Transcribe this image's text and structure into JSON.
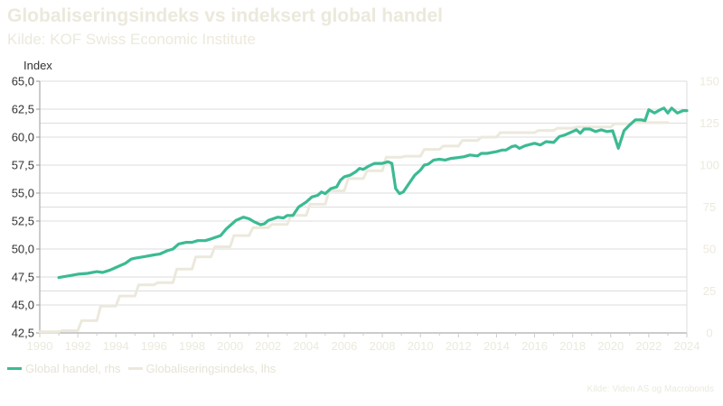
{
  "header": {
    "title": "Globaliseringsindeks vs indeksert global handel",
    "subtitle": "Kilde: KOF Swiss Economic Institute"
  },
  "legend": {
    "items": [
      {
        "label": "Global handel, rhs",
        "color": "#3cba93"
      },
      {
        "label": "Globaliseringsindeks, lhs",
        "color": "#ece9dc"
      }
    ]
  },
  "footer": {
    "source": "Kilde: Viden AS og Macrobonds"
  },
  "chart_data": {
    "type": "line",
    "ylabel": "Index",
    "xlim": [
      1990,
      2024
    ],
    "x_ticks": [
      1990,
      1992,
      1994,
      1996,
      1998,
      2000,
      2002,
      2004,
      2006,
      2008,
      2010,
      2012,
      2014,
      2016,
      2018,
      2020,
      2022,
      2024
    ],
    "y_left": {
      "range": [
        42.5,
        65.0
      ],
      "ticks": [
        "42,5",
        "45,0",
        "47,5",
        "50,0",
        "52,5",
        "55,0",
        "57,5",
        "60,0",
        "62,5",
        "65,0"
      ]
    },
    "y_right": {
      "range": [
        0,
        150
      ],
      "ticks": [
        "0",
        "25",
        "50",
        "75",
        "100",
        "125",
        "150"
      ]
    },
    "grid": true,
    "colors": {
      "trade": "#3cba93",
      "globalization": "#ece9dc",
      "axis_text": "#ece9dc",
      "left_text": "#333333",
      "grid": "#dddddd"
    },
    "series": [
      {
        "name": "Globaliseringsindeks, lhs",
        "axis": "left",
        "color": "#ece9dc",
        "points": [
          [
            1990,
            42.6
          ],
          [
            1991,
            42.6
          ],
          [
            1991.2,
            42.7
          ],
          [
            1992,
            42.7
          ],
          [
            1992.2,
            43.6
          ],
          [
            1993,
            43.6
          ],
          [
            1993.2,
            44.9
          ],
          [
            1994,
            44.9
          ],
          [
            1994.2,
            45.8
          ],
          [
            1995,
            45.8
          ],
          [
            1995.2,
            46.8
          ],
          [
            1996,
            46.8
          ],
          [
            1996.2,
            47.0
          ],
          [
            1997,
            47.0
          ],
          [
            1997.2,
            48.2
          ],
          [
            1998,
            48.2
          ],
          [
            1998.2,
            49.3
          ],
          [
            1999,
            49.3
          ],
          [
            1999.2,
            50.2
          ],
          [
            2000,
            50.2
          ],
          [
            2000.2,
            51.2
          ],
          [
            2001,
            51.2
          ],
          [
            2001.2,
            51.9
          ],
          [
            2002,
            51.9
          ],
          [
            2002.2,
            52.2
          ],
          [
            2003,
            52.2
          ],
          [
            2003.2,
            53.0
          ],
          [
            2004,
            53.0
          ],
          [
            2004.2,
            54.0
          ],
          [
            2005,
            54.0
          ],
          [
            2005.2,
            55.2
          ],
          [
            2006,
            55.2
          ],
          [
            2006.2,
            56.3
          ],
          [
            2007,
            56.3
          ],
          [
            2007.2,
            57.0
          ],
          [
            2008,
            57.0
          ],
          [
            2008.2,
            58.2
          ],
          [
            2009,
            58.2
          ],
          [
            2009.2,
            58.3
          ],
          [
            2010,
            58.3
          ],
          [
            2010.2,
            58.9
          ],
          [
            2011,
            58.9
          ],
          [
            2011.2,
            59.2
          ],
          [
            2012,
            59.2
          ],
          [
            2012.2,
            59.7
          ],
          [
            2013,
            59.7
          ],
          [
            2013.2,
            60.0
          ],
          [
            2014,
            60.0
          ],
          [
            2014.2,
            60.4
          ],
          [
            2015,
            60.4
          ],
          [
            2015.2,
            60.4
          ],
          [
            2016,
            60.4
          ],
          [
            2016.2,
            60.6
          ],
          [
            2017,
            60.6
          ],
          [
            2017.2,
            60.8
          ],
          [
            2018,
            60.8
          ],
          [
            2018.2,
            60.9
          ],
          [
            2019,
            60.9
          ],
          [
            2019.2,
            60.9
          ],
          [
            2020,
            60.9
          ],
          [
            2020.2,
            61.2
          ],
          [
            2021,
            61.2
          ],
          [
            2021.2,
            61.3
          ],
          [
            2023,
            61.3
          ]
        ]
      },
      {
        "name": "Global handel, rhs",
        "axis": "right",
        "color": "#3cba93",
        "points": [
          [
            1991,
            33
          ],
          [
            1991.5,
            34
          ],
          [
            1992,
            35
          ],
          [
            1992.5,
            35.5
          ],
          [
            1993,
            36.5
          ],
          [
            1993.3,
            36
          ],
          [
            1993.7,
            37.5
          ],
          [
            1994,
            39
          ],
          [
            1994.5,
            41.5
          ],
          [
            1994.8,
            44
          ],
          [
            1995,
            44.5
          ],
          [
            1995.5,
            45.5
          ],
          [
            1996,
            46.5
          ],
          [
            1996.3,
            47
          ],
          [
            1996.7,
            49
          ],
          [
            1997,
            50
          ],
          [
            1997.3,
            53
          ],
          [
            1997.7,
            54
          ],
          [
            1998,
            54
          ],
          [
            1998.3,
            55
          ],
          [
            1998.7,
            55
          ],
          [
            1999,
            56
          ],
          [
            1999.5,
            58
          ],
          [
            1999.8,
            62
          ],
          [
            2000,
            64
          ],
          [
            2000.3,
            67
          ],
          [
            2000.7,
            69
          ],
          [
            2001,
            68
          ],
          [
            2001.3,
            66
          ],
          [
            2001.6,
            64.5
          ],
          [
            2001.8,
            65
          ],
          [
            2002,
            67
          ],
          [
            2002.5,
            69
          ],
          [
            2002.8,
            68.5
          ],
          [
            2003,
            70
          ],
          [
            2003.3,
            70
          ],
          [
            2003.6,
            75
          ],
          [
            2004,
            78
          ],
          [
            2004.3,
            81
          ],
          [
            2004.6,
            82
          ],
          [
            2004.8,
            84
          ],
          [
            2005,
            83
          ],
          [
            2005.3,
            86
          ],
          [
            2005.6,
            87
          ],
          [
            2005.8,
            91
          ],
          [
            2006,
            93
          ],
          [
            2006.3,
            94
          ],
          [
            2006.6,
            96
          ],
          [
            2006.8,
            98
          ],
          [
            2007,
            97.5
          ],
          [
            2007.3,
            99.5
          ],
          [
            2007.6,
            101
          ],
          [
            2008,
            101
          ],
          [
            2008.3,
            102
          ],
          [
            2008.5,
            101
          ],
          [
            2008.7,
            86
          ],
          [
            2008.9,
            83
          ],
          [
            2009.1,
            84
          ],
          [
            2009.4,
            89
          ],
          [
            2009.7,
            94
          ],
          [
            2010,
            97
          ],
          [
            2010.2,
            100
          ],
          [
            2010.4,
            100.5
          ],
          [
            2010.7,
            103
          ],
          [
            2011,
            103.5
          ],
          [
            2011.3,
            103
          ],
          [
            2011.6,
            104
          ],
          [
            2012,
            104.5
          ],
          [
            2012.3,
            105
          ],
          [
            2012.6,
            106
          ],
          [
            2013,
            105.5
          ],
          [
            2013.2,
            107
          ],
          [
            2013.5,
            107
          ],
          [
            2014,
            108
          ],
          [
            2014.3,
            109
          ],
          [
            2014.5,
            109
          ],
          [
            2014.8,
            111
          ],
          [
            2015,
            111.5
          ],
          [
            2015.2,
            110
          ],
          [
            2015.5,
            111.5
          ],
          [
            2016,
            113
          ],
          [
            2016.3,
            112
          ],
          [
            2016.6,
            114
          ],
          [
            2017,
            113.5
          ],
          [
            2017.3,
            117
          ],
          [
            2017.6,
            118
          ],
          [
            2018,
            120
          ],
          [
            2018.2,
            121
          ],
          [
            2018.4,
            119
          ],
          [
            2018.6,
            121.5
          ],
          [
            2018.9,
            121.5
          ],
          [
            2019.2,
            120
          ],
          [
            2019.5,
            121
          ],
          [
            2019.8,
            120
          ],
          [
            2020.1,
            120.5
          ],
          [
            2020.4,
            110
          ],
          [
            2020.7,
            120.5
          ],
          [
            2021,
            124
          ],
          [
            2021.3,
            127
          ],
          [
            2021.6,
            127
          ],
          [
            2021.8,
            126.5
          ],
          [
            2022,
            133
          ],
          [
            2022.3,
            131
          ],
          [
            2022.6,
            133
          ],
          [
            2022.8,
            134
          ],
          [
            2023.0,
            131
          ],
          [
            2023.2,
            134
          ],
          [
            2023.5,
            131
          ],
          [
            2023.8,
            132.5
          ],
          [
            2024,
            132.5
          ]
        ]
      }
    ]
  }
}
